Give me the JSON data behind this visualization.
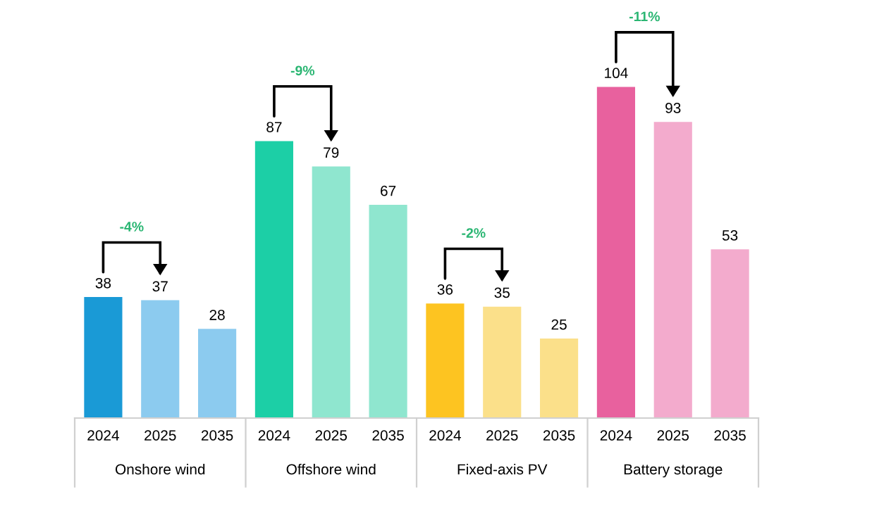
{
  "chart_data": {
    "type": "bar",
    "categories": [
      "2024",
      "2025",
      "2035",
      "2024",
      "2025",
      "2035",
      "2024",
      "2025",
      "2035",
      "2024",
      "2025",
      "2035"
    ],
    "values": [
      38,
      37,
      28,
      87,
      79,
      67,
      36,
      35,
      25,
      104,
      93,
      53
    ],
    "colors": [
      "#1a9ad6",
      "#8ccbef",
      "#8ccbef",
      "#1ccfa6",
      "#8fe6cf",
      "#8fe6cf",
      "#fdc421",
      "#fbe08a",
      "#fbe08a",
      "#e8619e",
      "#f3abcd",
      "#f3abcd"
    ],
    "data_labels": true,
    "grid": false,
    "legend": false,
    "annotations": [
      "Onshore wind",
      "Offshore wind",
      "Fixed-axis PV",
      "Battery storage",
      "-4%",
      "-9%",
      "-2%",
      "-11%"
    ]
  }
}
